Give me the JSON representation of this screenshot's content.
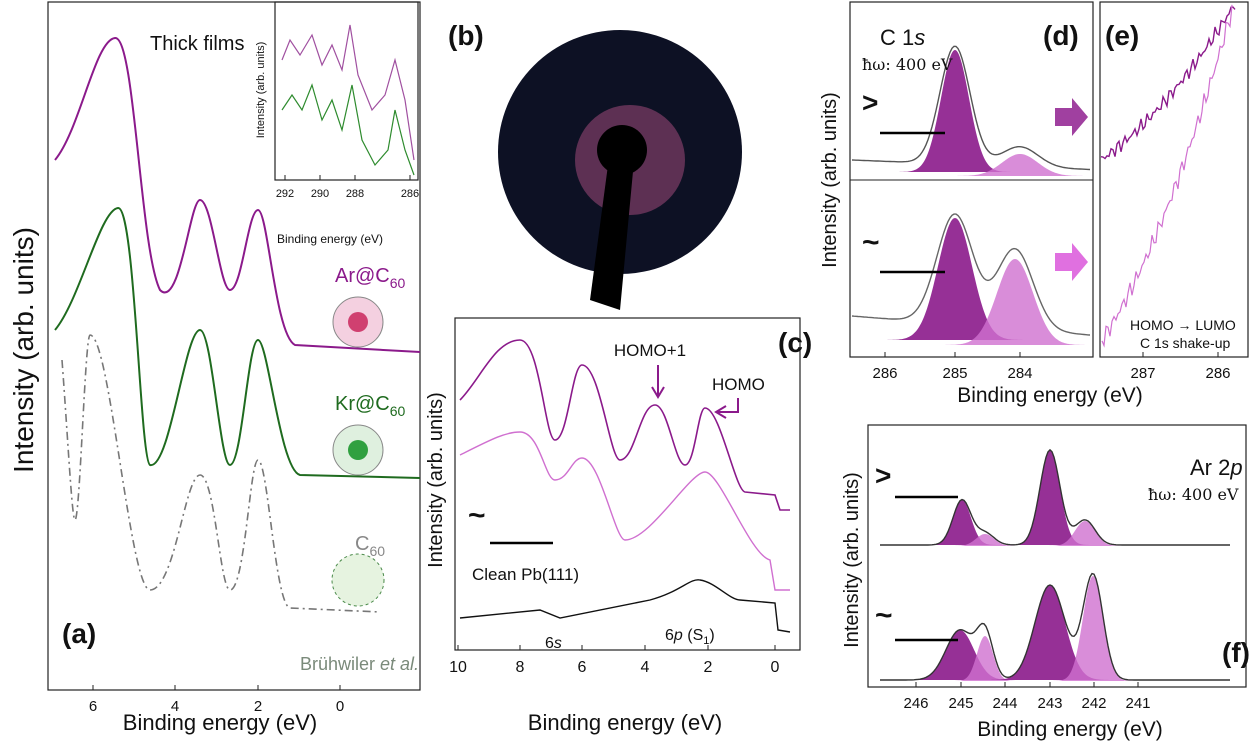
{
  "panels": {
    "a": {
      "label": "(a)",
      "title": "Thick films",
      "x_label": "Binding energy (eV)",
      "y_label": "Intensity (arb. units)",
      "xticks": [
        6,
        4,
        2,
        0
      ],
      "inset": {
        "x_label": "Binding energy (eV)",
        "y_label": "Intensity (arb. units)",
        "xticks": [
          292,
          290,
          288,
          286
        ]
      },
      "samples": [
        {
          "name": "Ar@C",
          "sub": "60"
        },
        {
          "name": "Kr@C",
          "sub": "60"
        },
        {
          "name": "C",
          "sub": "60"
        }
      ],
      "reference": {
        "author": "Brühwiler ",
        "etal": "et al."
      }
    },
    "b": {
      "label": "(b)"
    },
    "c": {
      "label": "(c)",
      "x_label": "Binding energy (eV)",
      "y_label": "Intensity (arb. units)",
      "xticks": [
        10,
        8,
        6,
        4,
        2,
        0
      ],
      "homo1": "HOMO+1",
      "homo": "HOMO",
      "clean": "Clean Pb(111)",
      "tilde": "~",
      "s6": [
        "6",
        "s"
      ],
      "p6": [
        "6",
        "p",
        " (S",
        "1",
        ")"
      ]
    },
    "d": {
      "label": "(d)",
      "core": [
        "C 1",
        "s"
      ],
      "photon": "ħω: 400 eV",
      "markers": [
        ">",
        "~"
      ],
      "x_label": "Binding energy (eV)",
      "y_label": "Intensity (arb. units)",
      "xticks": [
        286,
        285,
        284
      ]
    },
    "e": {
      "label": "(e)",
      "xticks": [
        287,
        286
      ],
      "note": [
        "HOMO → LUMO",
        "C 1s shake-up"
      ]
    },
    "f": {
      "label": "(f)",
      "core": [
        "Ar 2",
        "p"
      ],
      "photon": "ħω: 400 eV",
      "markers": [
        ">",
        "~"
      ],
      "x_label": "Binding energy (eV)",
      "y_label": "Intensity (arb. units)",
      "xticks": [
        246,
        245,
        244,
        243,
        242,
        241
      ]
    }
  }
}
